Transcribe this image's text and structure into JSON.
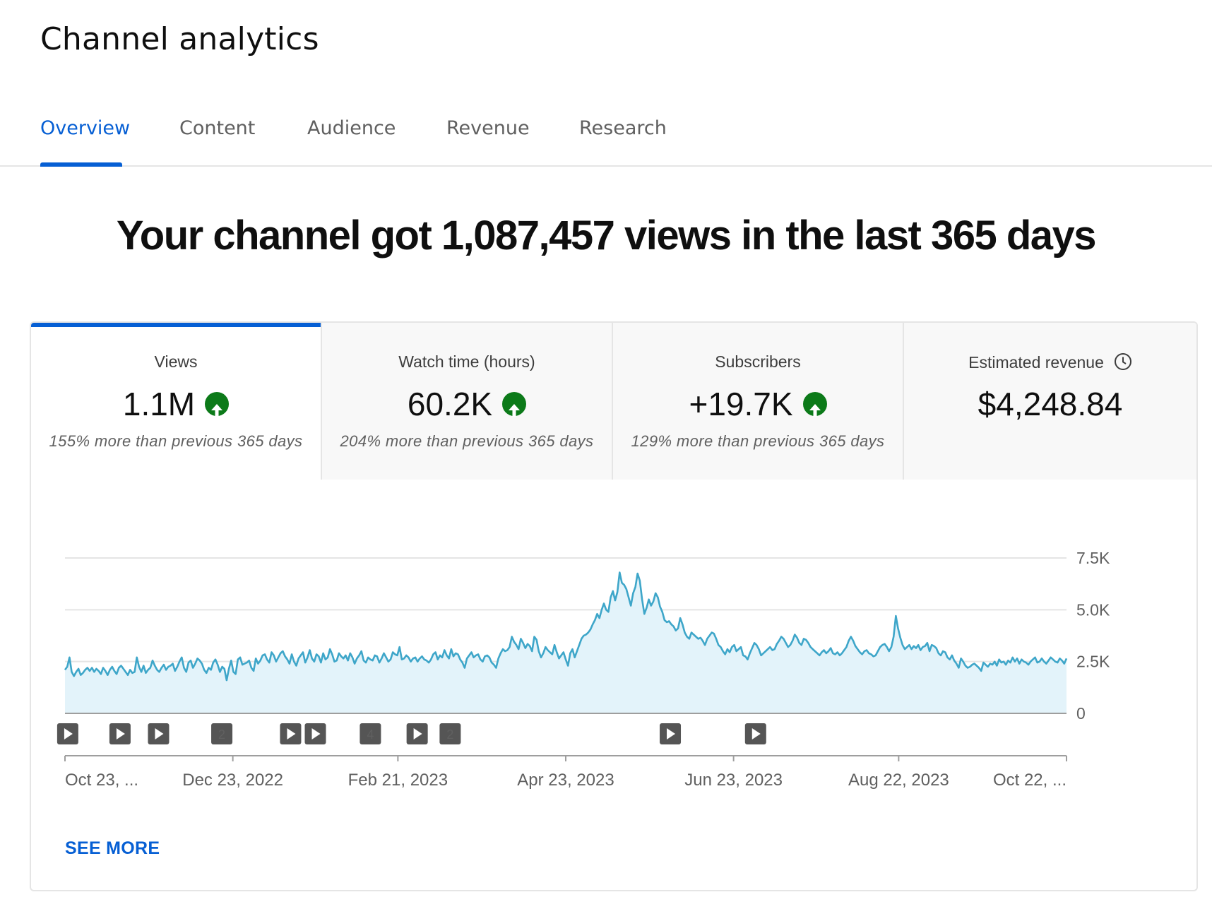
{
  "page": {
    "title": "Channel analytics"
  },
  "tabs": [
    {
      "label": "Overview",
      "active": true
    },
    {
      "label": "Content",
      "active": false
    },
    {
      "label": "Audience",
      "active": false
    },
    {
      "label": "Revenue",
      "active": false
    },
    {
      "label": "Research",
      "active": false
    }
  ],
  "headline": "Your channel got 1,087,457 views in the last 365 days",
  "metrics": [
    {
      "label": "Views",
      "value": "1.1M",
      "compare": "155% more than previous 365 days",
      "trend_icon": "arrow-up-icon",
      "active": true
    },
    {
      "label": "Watch time (hours)",
      "value": "60.2K",
      "compare": "204% more than previous 365 days",
      "trend_icon": "arrow-up-icon",
      "active": false
    },
    {
      "label": "Subscribers",
      "value": "+19.7K",
      "compare": "129% more than previous 365 days",
      "trend_icon": "arrow-up-icon",
      "active": false
    },
    {
      "label": "Estimated revenue",
      "value": "$4,248.84",
      "compare": "",
      "trend_icon": "clock-icon",
      "active": false
    }
  ],
  "colors": {
    "accent": "#065fd4",
    "up_green": "#0c7a19",
    "line": "#3ea6c9",
    "area": "#e3f3fa"
  },
  "chart_data": {
    "type": "area",
    "ylim": [
      0,
      7500
    ],
    "y_ticks": [
      {
        "value": 7500,
        "label": "7.5K"
      },
      {
        "value": 5000,
        "label": "5.0K"
      },
      {
        "value": 2500,
        "label": "2.5K"
      },
      {
        "value": 0,
        "label": "0"
      }
    ],
    "x_range": [
      "2022-10-23",
      "2023-10-22"
    ],
    "x_ticks": [
      {
        "date": "2022-10-23",
        "label": "Oct 23, ..."
      },
      {
        "date": "2022-12-23",
        "label": "Dec 23, 2022"
      },
      {
        "date": "2023-02-21",
        "label": "Feb 21, 2023"
      },
      {
        "date": "2023-04-23",
        "label": "Apr 23, 2023"
      },
      {
        "date": "2023-06-23",
        "label": "Jun 23, 2023"
      },
      {
        "date": "2023-08-22",
        "label": "Aug 22, 2023"
      },
      {
        "date": "2023-10-22",
        "label": "Oct 22, ..."
      }
    ],
    "series": [
      {
        "values": [
          2100,
          2250,
          2700,
          2000,
          1800,
          2000,
          2150,
          1850,
          1950,
          2100,
          2200,
          2050,
          2200,
          2000,
          2150,
          2050,
          1900,
          2200,
          2050,
          1850,
          2100,
          2250,
          2050,
          1900,
          2200,
          2300,
          2150,
          2000,
          1850,
          2100,
          1950,
          2000,
          2700,
          2250,
          2000,
          2300,
          1950,
          2100,
          2200,
          2550,
          2300,
          2100,
          2000,
          2200,
          2350,
          2100,
          2250,
          2300,
          2400,
          2050,
          2250,
          2500,
          2700,
          2200,
          2000,
          2450,
          2550,
          2200,
          2400,
          2650,
          2550,
          2400,
          2100,
          1950,
          2200,
          2100,
          2450,
          2600,
          2350,
          2000,
          2250,
          2150,
          1600,
          2150,
          2550,
          2000,
          1900,
          2600,
          2700,
          2350,
          2400,
          2450,
          2550,
          2200,
          2050,
          2650,
          2400,
          2550,
          2800,
          2850,
          2600,
          2450,
          2950,
          2800,
          2500,
          2700,
          2900,
          3000,
          2750,
          2600,
          2400,
          2850,
          2500,
          2300,
          2650,
          2800,
          2950,
          2450,
          2700,
          3050,
          2650,
          2500,
          2850,
          2750,
          2450,
          2900,
          2600,
          2700,
          3100,
          2850,
          2500,
          2550,
          2900,
          2750,
          2650,
          2800,
          2550,
          2900,
          2700,
          2400,
          2650,
          2800,
          3000,
          2550,
          2450,
          2700,
          2600,
          2550,
          2800,
          2750,
          2450,
          2650,
          2900,
          2700,
          2500,
          2600,
          2950,
          2850,
          2800,
          3200,
          2600,
          2650,
          2800,
          2700,
          2500,
          2650,
          2700,
          2500,
          2650,
          2750,
          2600,
          2550,
          2450,
          2600,
          2850,
          2950,
          2600,
          2800,
          2700,
          3050,
          2800,
          2650,
          3100,
          2750,
          2900,
          2850,
          2600,
          2450,
          2200,
          2650,
          2800,
          2950,
          2700,
          2800,
          2850,
          2600,
          2500,
          2750,
          2800,
          2700,
          2450,
          2350,
          2200,
          2650,
          2900,
          3100,
          3000,
          3050,
          3200,
          3700,
          3450,
          3300,
          3100,
          3600,
          3400,
          3150,
          3350,
          3250,
          3000,
          3700,
          3550,
          3000,
          2700,
          2900,
          3200,
          3050,
          2950,
          2850,
          3300,
          2950,
          2650,
          2800,
          2950,
          2600,
          2300,
          2900,
          3100,
          2700,
          3000,
          3300,
          3600,
          3750,
          3800,
          3900,
          4050,
          4300,
          4500,
          4800,
          4600,
          5000,
          5300,
          5000,
          4900,
          5600,
          5900,
          5450,
          5850,
          6800,
          6300,
          6200,
          6000,
          5600,
          5200,
          5800,
          6100,
          6750,
          6400,
          5500,
          4800,
          5100,
          5500,
          5200,
          5400,
          5800,
          5600,
          5150,
          4900,
          4500,
          4400,
          4450,
          4300,
          4200,
          4000,
          4100,
          4600,
          4300,
          3900,
          3700,
          3600,
          3900,
          3800,
          3700,
          3600,
          3650,
          3500,
          3300,
          3600,
          3750,
          3900,
          3850,
          3600,
          3300,
          3200,
          3000,
          2850,
          3100,
          2950,
          3200,
          3300,
          3000,
          3100,
          3200,
          2800,
          2750,
          2600,
          2900,
          3150,
          3400,
          3300,
          3100,
          2800,
          2900,
          3000,
          3100,
          3200,
          3050,
          3100,
          3350,
          3500,
          3700,
          3600,
          3400,
          3200,
          3300,
          3500,
          3800,
          3650,
          3400,
          3300,
          3600,
          3550,
          3400,
          3200,
          3100,
          3000,
          2900,
          2800,
          2950,
          3050,
          2900,
          3000,
          3150,
          2900,
          2850,
          2950,
          2800,
          2900,
          3050,
          3200,
          3500,
          3700,
          3500,
          3250,
          3100,
          2950,
          2850,
          3000,
          3050,
          2900,
          2850,
          2750,
          2800,
          3000,
          3200,
          3300,
          3350,
          3200,
          3000,
          3200,
          3700,
          4700,
          4100,
          3650,
          3300,
          3100,
          3200,
          3300,
          3100,
          3250,
          3150,
          3300,
          3050,
          3200,
          3250,
          3400,
          3000,
          3300,
          3250,
          3150,
          2900,
          2800,
          3000,
          2950,
          2700,
          2600,
          2800,
          2550,
          2400,
          2200,
          2650,
          2500,
          2300,
          2200,
          2250,
          2350,
          2400,
          2300,
          2200,
          2050,
          2450,
          2350,
          2250,
          2400,
          2350,
          2500,
          2300,
          2600,
          2450,
          2500,
          2350,
          2550,
          2450,
          2700,
          2500,
          2650,
          2400,
          2600,
          2500,
          2450,
          2350,
          2500,
          2600,
          2700,
          2450,
          2500,
          2650,
          2500,
          2400,
          2550,
          2700,
          2600,
          2500,
          2450,
          2650,
          2550,
          2400,
          2650
        ]
      }
    ],
    "markers": [
      {
        "date": "2022-10-24",
        "kind": "video"
      },
      {
        "date": "2022-11-12",
        "kind": "video"
      },
      {
        "date": "2022-11-26",
        "kind": "video"
      },
      {
        "date": "2022-12-19",
        "kind": "count",
        "label": "2"
      },
      {
        "date": "2023-01-13",
        "kind": "video"
      },
      {
        "date": "2023-01-22",
        "kind": "video"
      },
      {
        "date": "2023-02-11",
        "kind": "count",
        "label": "4"
      },
      {
        "date": "2023-02-28",
        "kind": "video"
      },
      {
        "date": "2023-03-12",
        "kind": "count",
        "label": "2"
      },
      {
        "date": "2023-05-31",
        "kind": "video"
      },
      {
        "date": "2023-07-01",
        "kind": "video"
      }
    ]
  },
  "footer": {
    "see_more": "SEE MORE"
  }
}
